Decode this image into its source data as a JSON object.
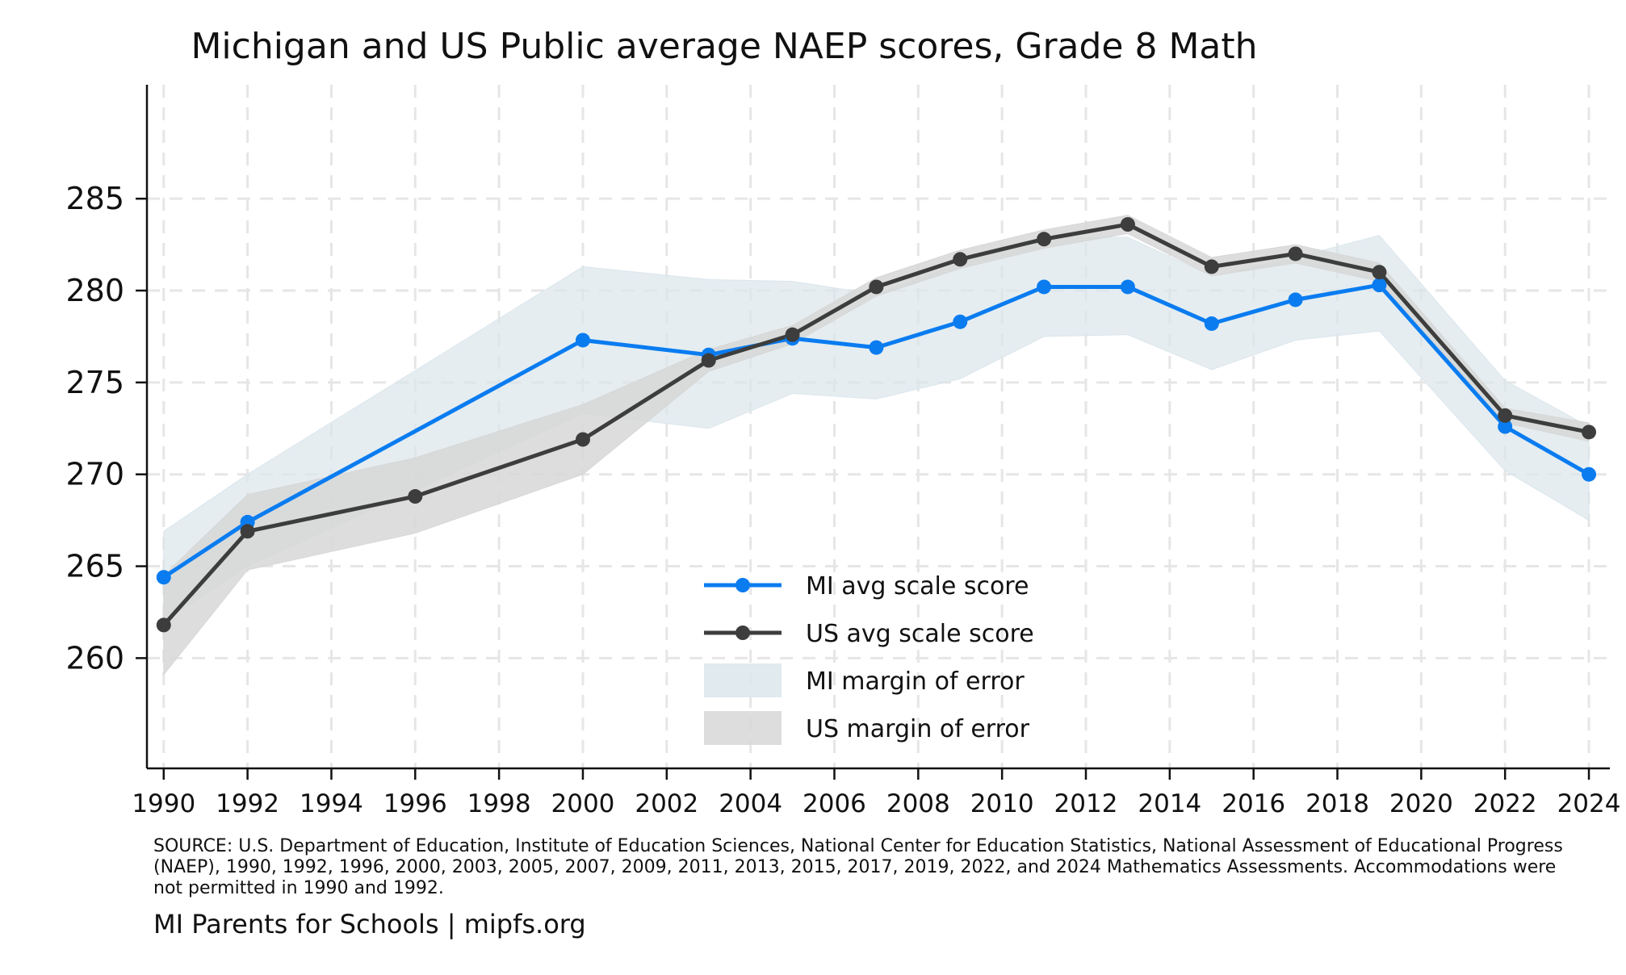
{
  "chart_data": {
    "type": "line",
    "title": "Michigan and US Public average NAEP scores, Grade 8 Math",
    "xlabel": "",
    "ylabel": "",
    "xlim": [
      1989.6,
      2024.5
    ],
    "ylim": [
      254,
      291.2
    ],
    "x_ticks": [
      1990,
      1992,
      1994,
      1996,
      1998,
      2000,
      2002,
      2004,
      2006,
      2008,
      2010,
      2012,
      2014,
      2016,
      2018,
      2020,
      2022,
      2024
    ],
    "y_ticks": [
      260,
      265,
      270,
      275,
      280,
      285
    ],
    "grid": true,
    "series": [
      {
        "name": "MI avg scale score",
        "kind": "line",
        "color": "#0a7cf0",
        "x": [
          1990,
          1992,
          2000,
          2003,
          2005,
          2007,
          2009,
          2011,
          2013,
          2015,
          2017,
          2019,
          2022,
          2024
        ],
        "values": [
          264.4,
          267.4,
          277.3,
          276.5,
          277.4,
          276.9,
          278.3,
          280.2,
          280.2,
          278.2,
          279.5,
          280.3,
          272.6,
          270.0
        ]
      },
      {
        "name": "US avg scale score",
        "kind": "line",
        "color": "#3d3d3d",
        "x": [
          1990,
          1992,
          1996,
          2000,
          2003,
          2005,
          2007,
          2009,
          2011,
          2013,
          2015,
          2017,
          2019,
          2022,
          2024
        ],
        "values": [
          261.8,
          266.9,
          268.8,
          271.9,
          276.2,
          277.6,
          280.2,
          281.7,
          282.8,
          283.6,
          281.3,
          282.0,
          281.0,
          273.2,
          272.3
        ]
      },
      {
        "name": "MI margin of error",
        "kind": "band",
        "color": "#dbe6ec",
        "x": [
          1990,
          1992,
          2000,
          2003,
          2005,
          2007,
          2009,
          2011,
          2013,
          2015,
          2017,
          2019,
          2022,
          2024
        ],
        "lower": [
          262.0,
          265.0,
          273.3,
          272.5,
          274.4,
          274.1,
          275.2,
          277.5,
          277.6,
          275.7,
          277.3,
          277.8,
          270.2,
          267.5
        ],
        "upper": [
          266.9,
          270.0,
          281.3,
          280.6,
          280.5,
          279.8,
          281.5,
          282.9,
          282.9,
          280.8,
          281.8,
          283.0,
          275.1,
          272.6
        ]
      },
      {
        "name": "US margin of error",
        "kind": "band",
        "color": "#d7d7d7",
        "x": [
          1990,
          1992,
          1996,
          2000,
          2003,
          2005,
          2007,
          2009,
          2011,
          2013,
          2015,
          2017,
          2019,
          2022,
          2024
        ],
        "lower": [
          259.1,
          264.8,
          266.8,
          270.0,
          275.6,
          277.1,
          279.7,
          281.2,
          282.3,
          283.1,
          280.8,
          281.5,
          280.5,
          272.8,
          271.8
        ],
        "upper": [
          264.5,
          268.9,
          270.9,
          273.8,
          276.8,
          278.1,
          280.7,
          282.2,
          283.3,
          284.1,
          281.8,
          282.5,
          281.5,
          273.6,
          272.8
        ]
      }
    ],
    "legend_position": "bottom-center"
  },
  "source_note": "SOURCE: U.S. Department of Education, Institute of Education Sciences, National Center for Education Statistics, National Assessment of Educational Progress (NAEP), 1990, 1992, 1996, 2000, 2003, 2005, 2007, 2009, 2011, 2013, 2015, 2017, 2019, 2022, and 2024 Mathematics Assessments. Accommodations were not permitted in 1990 and 1992.",
  "credit": "MI Parents for Schools | mipfs.org"
}
